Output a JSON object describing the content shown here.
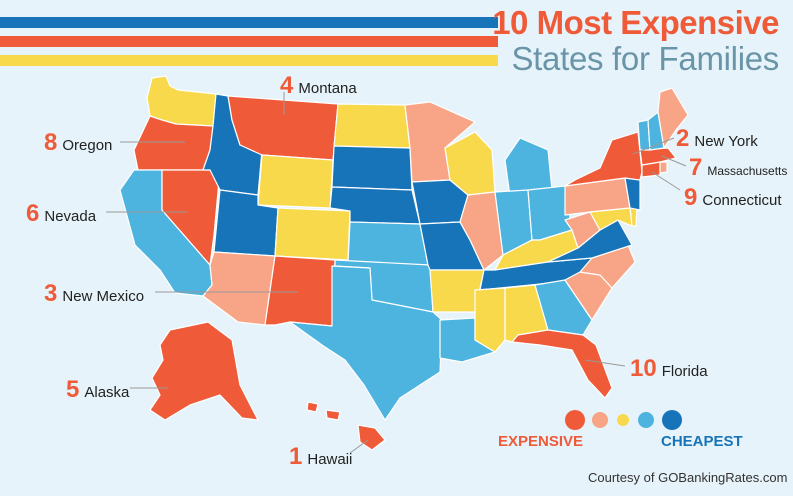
{
  "title": {
    "line1": "10 Most Expensive",
    "line2": "States for Families"
  },
  "colors": {
    "rank_text": "#ef5a39",
    "tier1": "#ef5a39",
    "tier2": "#f7a586",
    "tier3": "#f8d94b",
    "tier4": "#4db4e0",
    "tier5": "#1874b8",
    "stripe_blue": "#1874b8",
    "stripe_orange": "#ef5a39",
    "stripe_yellow": "#f8d94b",
    "background": "#e6f3fa"
  },
  "labels": [
    {
      "rank": "1",
      "name": "Hawaii"
    },
    {
      "rank": "2",
      "name": "New York"
    },
    {
      "rank": "3",
      "name": "New Mexico"
    },
    {
      "rank": "4",
      "name": "Montana"
    },
    {
      "rank": "5",
      "name": "Alaska"
    },
    {
      "rank": "6",
      "name": "Nevada"
    },
    {
      "rank": "7",
      "name": "Massachusetts"
    },
    {
      "rank": "8",
      "name": "Oregon"
    },
    {
      "rank": "9",
      "name": "Connecticut"
    },
    {
      "rank": "10",
      "name": "Florida"
    }
  ],
  "legend": {
    "expensive_label": "EXPENSIVE",
    "cheapest_label": "CHEAPEST",
    "swatches": [
      "tier1",
      "tier2",
      "tier3",
      "tier4",
      "tier5"
    ]
  },
  "credit": "Courtesy of GOBankingRates.com",
  "states": {
    "WA": "tier3",
    "OR": "tier1",
    "CA": "tier4",
    "NV": "tier1",
    "ID": "tier5",
    "MT": "tier1",
    "WY": "tier3",
    "UT": "tier5",
    "AZ": "tier2",
    "CO": "tier3",
    "NM": "tier1",
    "ND": "tier3",
    "SD": "tier5",
    "NE": "tier5",
    "KS": "tier4",
    "OK": "tier4",
    "TX": "tier4",
    "MN": "tier2",
    "IA": "tier5",
    "MO": "tier5",
    "AR": "tier3",
    "LA": "tier4",
    "WI": "tier3",
    "IL": "tier2",
    "MI": "tier4",
    "IN": "tier4",
    "OH": "tier4",
    "KY": "tier3",
    "TN": "tier5",
    "MS": "tier3",
    "AL": "tier3",
    "GA": "tier4",
    "FL": "tier1",
    "SC": "tier2",
    "NC": "tier2",
    "VA": "tier5",
    "WV": "tier2",
    "PA": "tier2",
    "NY": "tier1",
    "ME": "tier2",
    "VT": "tier4",
    "NH": "tier4",
    "MA": "tier1",
    "CT": "tier1",
    "RI": "tier2",
    "NJ": "tier5",
    "DE": "tier3",
    "MD": "tier3",
    "AK": "tier1",
    "HI": "tier1"
  }
}
